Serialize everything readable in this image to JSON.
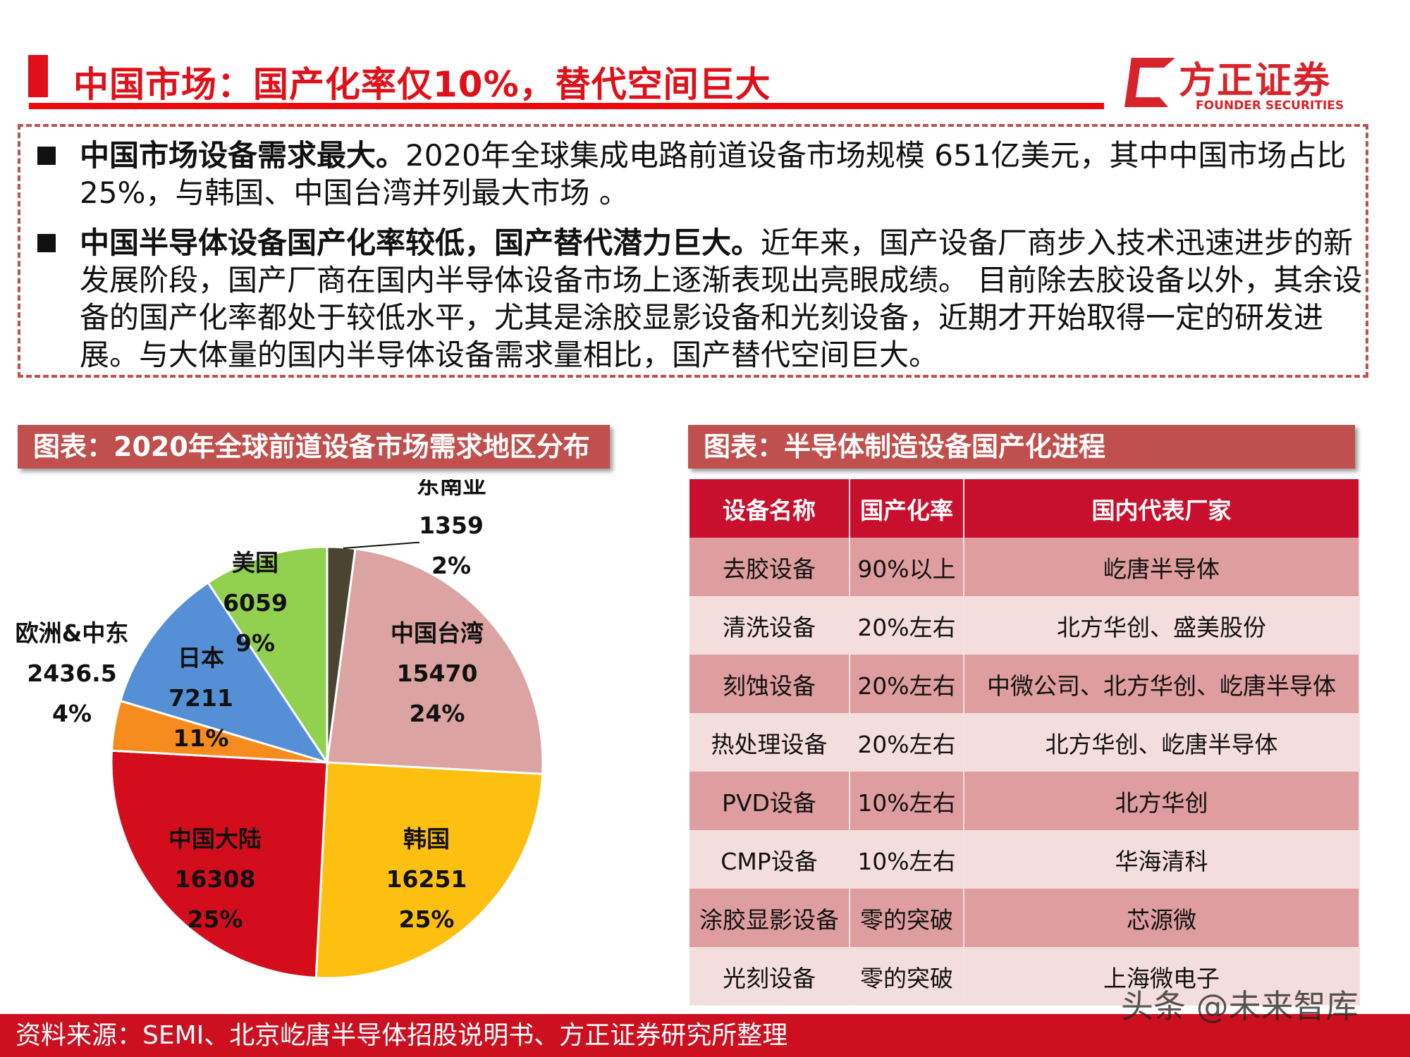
{
  "header": {
    "title": "中国市场：国产化率仅10%，替代空间巨大",
    "logo_cn": "方正证券",
    "logo_en": "FOUNDER SECURITIES"
  },
  "points": [
    {
      "bold": "中国市场设备需求最大。",
      "text": "2020年全球集成电路前道设备市场规模 651亿美元，其中中国市场占比25%，与韩国、中国台湾并列最大市场 。"
    },
    {
      "bold": "中国半导体设备国产化率较低，国产替代潜力巨大。",
      "text": "近年来，国产设备厂商步入技术迅速进步的新发展阶段，国产厂商在国内半导体设备市场上逐渐表现出亮眼成绩。 目前除去胶设备以外，其余设备的国产化率都处于较低水平，尤其是涂胶显影设备和光刻设备，近期才开始取得一定的研发进展。与大体量的国内半导体设备需求量相比，国产替代空间巨大。"
    }
  ],
  "left_chart_title": "图表：2020年全球前道设备市场需求地区分布",
  "right_chart_title": "图表：半导体制造设备国产化进程",
  "chart_data": {
    "type": "pie",
    "title": "图表：2020年全球前道设备市场需求地区分布",
    "start": "12 o'clock, clockwise",
    "slices": [
      {
        "label": "东南亚",
        "value": 1359,
        "pct": "2%",
        "color": "#4a4530"
      },
      {
        "label": "中国台湾",
        "value": 15470,
        "pct": "24%",
        "color": "#dca3a3"
      },
      {
        "label": "韩国",
        "value": 16251,
        "pct": "25%",
        "color": "#fdc010"
      },
      {
        "label": "中国大陆",
        "value": 16308,
        "pct": "25%",
        "color": "#d40d1c"
      },
      {
        "label": "欧洲&中东",
        "value": 2436.5,
        "pct": "4%",
        "color": "#f68b1e"
      },
      {
        "label": "日本",
        "value": 7211,
        "pct": "11%",
        "color": "#5590d6"
      },
      {
        "label": "美国",
        "value": 6059,
        "pct": "9%",
        "color": "#92d050"
      }
    ]
  },
  "table": {
    "headers": [
      "设备名称",
      "国产化率",
      "国内代表厂家"
    ],
    "rows": [
      [
        "去胶设备",
        "90%以上",
        "屹唐半导体"
      ],
      [
        "清洗设备",
        "20%左右",
        "北方华创、盛美股份"
      ],
      [
        "刻蚀设备",
        "20%左右",
        "中微公司、北方华创、屹唐半导体"
      ],
      [
        "热处理设备",
        "20%左右",
        "北方华创、屹唐半导体"
      ],
      [
        "PVD设备",
        "10%左右",
        "北方华创"
      ],
      [
        "CMP设备",
        "10%左右",
        "华海清科"
      ],
      [
        "涂胶显影设备",
        "零的突破",
        "芯源微"
      ],
      [
        "光刻设备",
        "零的突破",
        "上海微电子"
      ]
    ]
  },
  "footer": {
    "source": "资料来源：SEMI、北京屹唐半导体招股说明书、方正证券研究所整理"
  },
  "watermark": "头条 @未来智库"
}
